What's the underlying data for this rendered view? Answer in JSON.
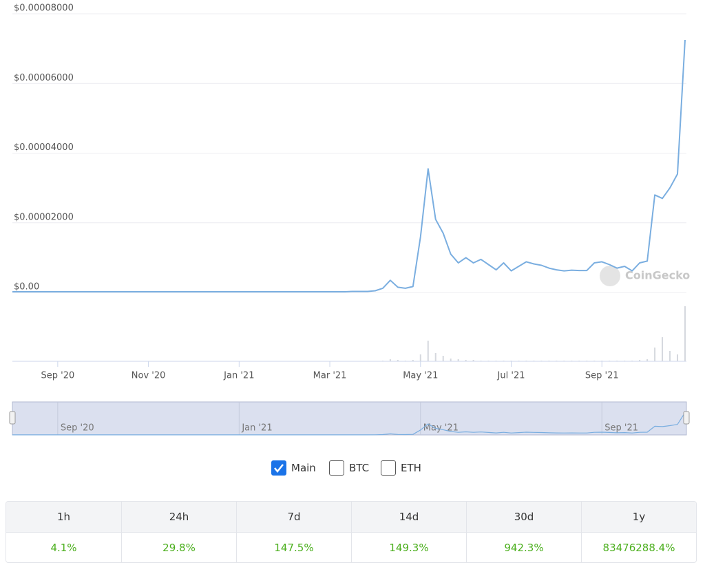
{
  "chart_data": {
    "type": "line",
    "categories": [
      null,
      null,
      null,
      null,
      null,
      null,
      "Sep '20",
      null,
      null,
      null,
      null,
      null,
      null,
      null,
      null,
      null,
      null,
      null,
      "Nov '20",
      null,
      null,
      null,
      null,
      null,
      null,
      null,
      null,
      null,
      null,
      null,
      "Jan '21",
      null,
      null,
      null,
      null,
      null,
      null,
      null,
      null,
      null,
      null,
      null,
      "Mar '21",
      null,
      null,
      null,
      null,
      null,
      null,
      null,
      null,
      null,
      null,
      null,
      "May '21",
      null,
      null,
      null,
      null,
      null,
      null,
      null,
      null,
      null,
      null,
      null,
      "Jul '21",
      null,
      null,
      null,
      null,
      null,
      null,
      null,
      null,
      null,
      null,
      null,
      "Sep '21",
      null,
      null,
      null,
      null,
      null,
      null,
      null,
      null,
      null,
      null,
      null
    ],
    "series": [
      {
        "name": "Main",
        "color": "#7aaee0",
        "values": [
          2e-07,
          2e-07,
          2e-07,
          2e-07,
          2e-07,
          2e-07,
          2e-07,
          2e-07,
          2e-07,
          2e-07,
          2e-07,
          2e-07,
          2e-07,
          2e-07,
          2e-07,
          2e-07,
          2e-07,
          2e-07,
          2e-07,
          2e-07,
          2e-07,
          2e-07,
          2e-07,
          2e-07,
          2e-07,
          2e-07,
          2e-07,
          2e-07,
          2e-07,
          2e-07,
          2e-07,
          2e-07,
          2e-07,
          2e-07,
          2e-07,
          2e-07,
          2e-07,
          2e-07,
          2e-07,
          2e-07,
          2e-07,
          2e-07,
          2e-07,
          2e-07,
          2e-07,
          3e-07,
          3e-07,
          3e-07,
          5e-07,
          1.2e-06,
          3.5e-06,
          1.5e-06,
          1.2e-06,
          1.7e-06,
          1.6e-05,
          3.55e-05,
          2.1e-05,
          1.7e-05,
          1.1e-05,
          8.5e-06,
          1e-05,
          8.5e-06,
          9.5e-06,
          8e-06,
          6.5e-06,
          8.5e-06,
          6.2e-06,
          7.5e-06,
          8.8e-06,
          8.2e-06,
          7.8e-06,
          7e-06,
          6.5e-06,
          6.2e-06,
          6.4e-06,
          6.3e-06,
          6.3e-06,
          8.5e-06,
          8.8e-06,
          8e-06,
          7e-06,
          7.5e-06,
          6.2e-06,
          8.5e-06,
          9e-06,
          2.8e-05,
          2.7e-05,
          3e-05,
          3.4e-05,
          7.25e-05
        ]
      }
    ],
    "volumes": [
      0,
      0,
      0,
      0,
      0,
      0,
      0,
      0,
      0,
      0,
      0,
      0,
      0,
      0,
      0,
      0,
      0,
      0,
      0,
      0,
      0,
      0,
      0,
      0,
      0,
      0,
      0,
      0,
      0,
      0,
      0,
      0,
      0,
      0,
      0,
      0,
      0,
      0,
      0,
      0,
      0,
      0,
      0,
      0,
      0,
      0,
      0,
      0,
      0,
      1,
      3,
      2,
      1,
      2,
      10,
      30,
      12,
      8,
      4,
      3,
      2,
      2,
      1,
      1,
      1,
      1,
      1,
      1,
      1,
      1,
      1,
      1,
      1,
      1,
      1,
      1,
      1,
      1,
      1,
      1,
      1,
      1,
      1,
      2,
      3,
      20,
      35,
      15,
      10,
      80
    ],
    "ylim": [
      0,
      8e-05
    ],
    "yticks": [
      {
        "value": 0,
        "label": "$0.00"
      },
      {
        "value": 2e-05,
        "label": "$0.00002000"
      },
      {
        "value": 4e-05,
        "label": "$0.00004000"
      },
      {
        "value": 6e-05,
        "label": "$0.00006000"
      },
      {
        "value": 8e-05,
        "label": "$0.00008000"
      }
    ],
    "grid": true,
    "watermark": "CoinGecko"
  },
  "toggles": [
    {
      "label": "Main",
      "checked": true
    },
    {
      "label": "BTC",
      "checked": false
    },
    {
      "label": "ETH",
      "checked": false
    }
  ],
  "table": {
    "headers": [
      "1h",
      "24h",
      "7d",
      "14d",
      "30d",
      "1y"
    ],
    "rows": [
      [
        "4.1%",
        "29.8%",
        "147.5%",
        "149.3%",
        "942.3%",
        "83476288.4%"
      ]
    ]
  }
}
